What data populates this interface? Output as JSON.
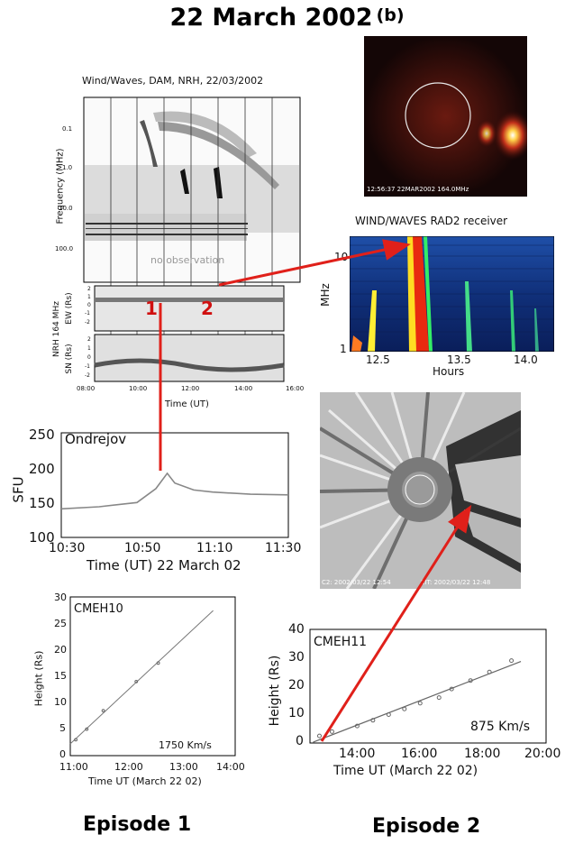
{
  "page": {
    "title": "22 March 2002",
    "panel_tag": "(b)",
    "episode1": "Episode 1",
    "episode2": "Episode 2"
  },
  "dynspec": {
    "title": "Wind/Waves, DAM, NRH, 22/03/2002",
    "ylabel": "Frequency (MHz)",
    "yticks": [
      "0.1",
      "1.0",
      "10.0",
      "100.0"
    ],
    "no_obs": "no observation",
    "ew_label": "EW (Rs)",
    "sn_label": "SN (Rs)",
    "nrh_label": "NRH 164 MHz",
    "ew_ticks": [
      "2",
      "1",
      "0",
      "-1",
      "-2"
    ],
    "sn_ticks": [
      "2",
      "1",
      "0",
      "-1",
      "-2"
    ],
    "xticks": [
      "08:00",
      "10:00",
      "12:00",
      "14:00",
      "16:00"
    ],
    "xlabel": "Time (UT)",
    "marker1": "1",
    "marker2": "2"
  },
  "eit": {
    "stamp": "12:56:37  22MAR2002  164.0MHz"
  },
  "rad2": {
    "title": "WIND/WAVES RAD2 receiver",
    "ylabel": "MHz",
    "yticks": [
      "10",
      "1"
    ],
    "xticks": [
      "12.5",
      "13.5",
      "14.0"
    ],
    "xlabel": "Hours"
  },
  "lasco": {
    "stamp_left": "C2: 2002/03/22 12:54",
    "stamp_right": "EIT: 2002/03/22 12:48"
  },
  "ondrejov": {
    "name": "Ondrejov",
    "ylabel": "SFU",
    "yticks": [
      "250",
      "200",
      "150",
      "100"
    ],
    "xticks": [
      "10:30",
      "10:50",
      "11:10",
      "11:30"
    ],
    "xlabel": "Time (UT) 22 March 02"
  },
  "cmeh10": {
    "name": "CMEH10",
    "ylabel": "Height (Rs)",
    "speed": "1750 Km/s",
    "xlabel": "Time UT (March 22 02)",
    "xticks": [
      "11:00",
      "12:00",
      "13:00",
      "14:00"
    ],
    "yticks": [
      "30",
      "25",
      "20",
      "15",
      "10",
      "5",
      "0"
    ]
  },
  "cmeh11": {
    "name": "CMEH11",
    "ylabel": "Height (Rs)",
    "speed": "875 Km/s",
    "xlabel": "Time UT  (March 22 02)",
    "xticks": [
      "14:00",
      "16:00",
      "18:00",
      "20:00"
    ],
    "yticks": [
      "40",
      "30",
      "20",
      "10",
      "0"
    ]
  },
  "chart_data": [
    {
      "type": "line",
      "name_ref": "Ondrejov",
      "x": [
        "10:30",
        "10:40",
        "10:50",
        "10:55",
        "10:58",
        "11:00",
        "11:05",
        "11:10",
        "11:20",
        "11:30"
      ],
      "values": [
        141,
        144,
        150,
        170,
        192,
        178,
        168,
        165,
        162,
        161
      ],
      "ylim": [
        100,
        250
      ]
    },
    {
      "type": "scatter",
      "name_ref": "CMEH10",
      "x_hours": [
        11.1,
        11.3,
        11.6,
        12.2,
        12.6
      ],
      "values": [
        3,
        5,
        8.5,
        14,
        17.5
      ],
      "xlim": [
        11,
        14
      ],
      "ylim": [
        0,
        30
      ]
    },
    {
      "type": "scatter",
      "name_ref": "CMEH11",
      "x_hours": [
        12.8,
        13.2,
        14.0,
        14.5,
        15.0,
        15.5,
        16.0,
        16.6,
        17.0,
        17.6,
        18.2,
        18.9
      ],
      "values": [
        2.5,
        4,
        6,
        8,
        10,
        12,
        14,
        16,
        19,
        22,
        25,
        29
      ],
      "xlim": [
        12.5,
        20
      ],
      "ylim": [
        0,
        40
      ]
    }
  ]
}
